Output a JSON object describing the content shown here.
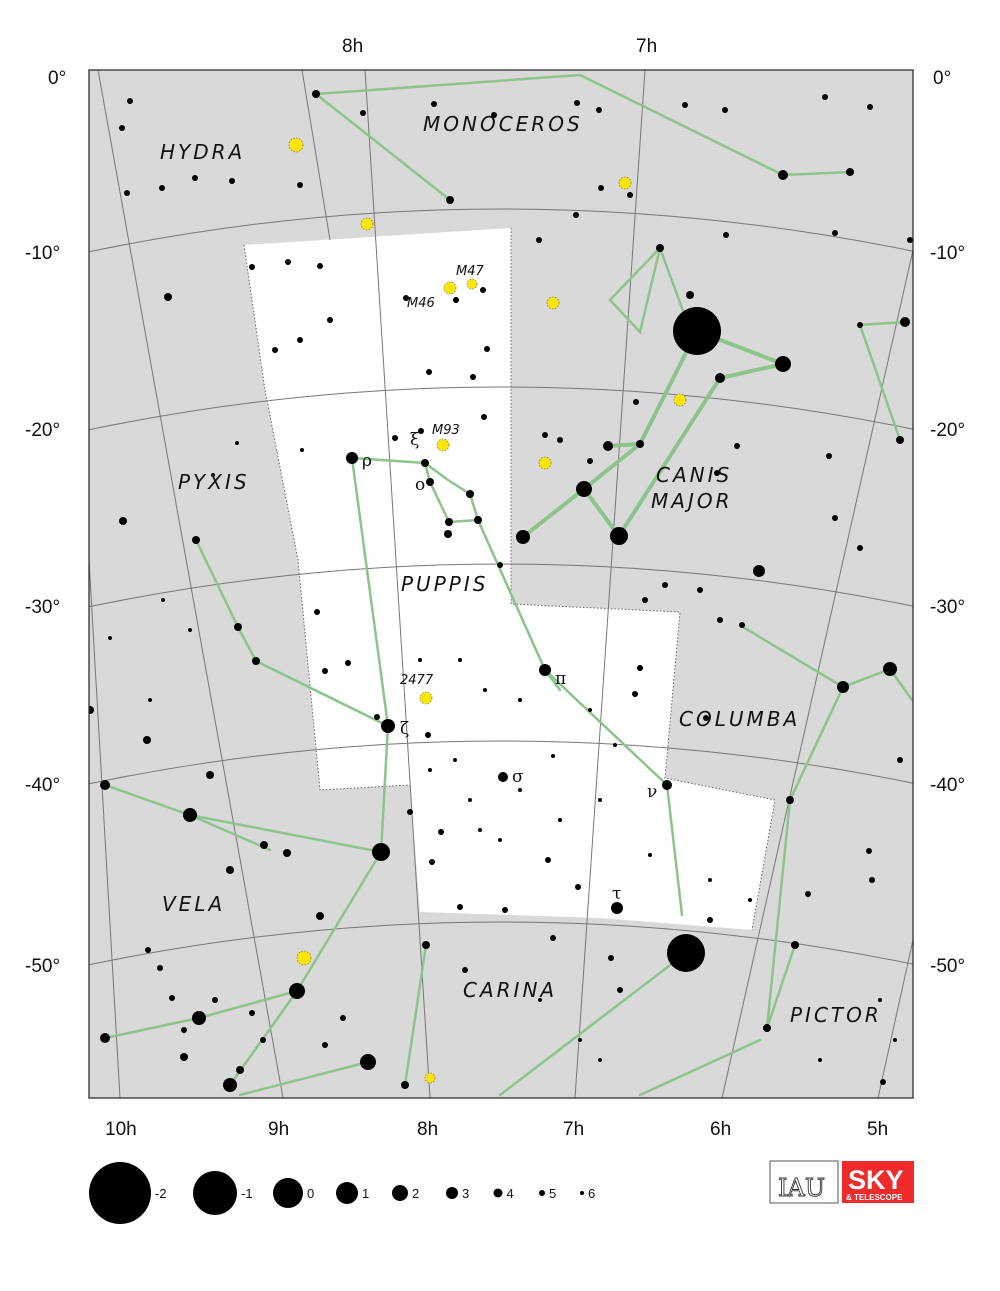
{
  "map": {
    "ra_labels_top": [
      "8h",
      "7h"
    ],
    "ra_labels_bottom": [
      "10h",
      "9h",
      "8h",
      "7h",
      "6h",
      "5h"
    ],
    "dec_labels": [
      "0°",
      "-10°",
      "-20°",
      "-30°",
      "-40°",
      "-50°"
    ],
    "constellations": [
      "HYDRA",
      "MONOCEROS",
      "PYXIS",
      "CANIS",
      "MAJOR",
      "PUPPIS",
      "COLUMBA",
      "VELA",
      "CARINA",
      "PICTOR"
    ],
    "objects": [
      "M47",
      "M46",
      "M93",
      "2477"
    ],
    "greek": {
      "rho": "ρ",
      "xi": "ξ",
      "omicron": "ο",
      "pi": "π",
      "zeta": "ζ",
      "sigma": "σ",
      "nu": "ν",
      "tau": "τ"
    },
    "colors": {
      "background_outside": "#d9d9d9",
      "highlight": "#ffffff",
      "lines": "#8cc48c",
      "clusters": "#ffe600",
      "logo_red": "#ee2a2a"
    }
  },
  "legend": {
    "title": "",
    "magnitudes": [
      "-2",
      "-1",
      "0",
      "1",
      "2",
      "3",
      "4",
      "5",
      "6"
    ]
  },
  "logos": {
    "iau": "IAU",
    "sky": "SKY",
    "sky_sub": "& TELESCOPE"
  }
}
